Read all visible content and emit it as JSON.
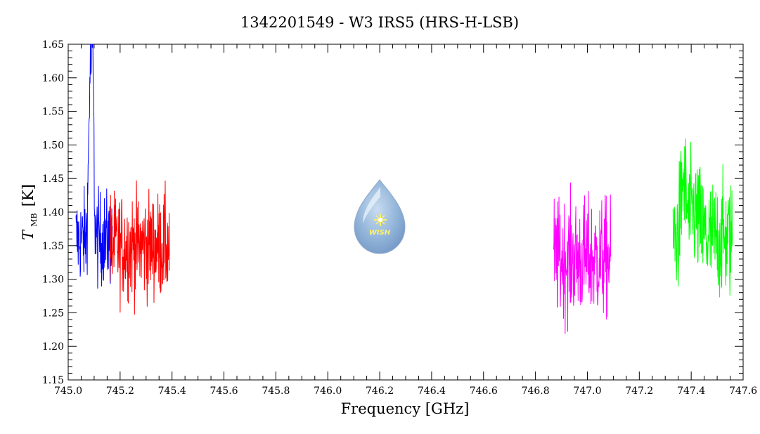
{
  "chart_data": {
    "type": "line",
    "title": "1342201549 - W3 IRS5 (HRS-H-LSB)",
    "xlabel": "Frequency [GHz]",
    "ylabel": {
      "symbol": "T",
      "subscript": "MB",
      "unit": "[K]"
    },
    "xlim": [
      745.0,
      747.6
    ],
    "ylim": [
      1.15,
      1.65
    ],
    "xticks": [
      "745.0",
      "745.2",
      "745.4",
      "745.6",
      "745.8",
      "746.0",
      "746.2",
      "746.4",
      "746.6",
      "746.8",
      "747.0",
      "747.2",
      "747.4",
      "747.6"
    ],
    "yticks": [
      "1.15",
      "1.20",
      "1.25",
      "1.30",
      "1.35",
      "1.40",
      "1.45",
      "1.50",
      "1.55",
      "1.60",
      "1.65"
    ],
    "grid": false,
    "logo_text": "WISH",
    "series": [
      {
        "color": "#0000ff",
        "x_range": [
          745.03,
          745.17
        ],
        "baseline": 1.36,
        "noise": 0.035,
        "features": [
          {
            "center": 745.085,
            "width": 0.006,
            "amplitude": 0.24
          },
          {
            "center": 745.095,
            "width": 0.004,
            "amplitude": 0.22
          }
        ]
      },
      {
        "color": "#ff0000",
        "x_range": [
          745.16,
          745.39
        ],
        "baseline": 1.35,
        "noise": 0.04,
        "features": []
      },
      {
        "color": "#ff00ff",
        "x_range": [
          746.87,
          747.09
        ],
        "baseline": 1.33,
        "noise": 0.045,
        "features": []
      },
      {
        "color": "#00ff00",
        "x_range": [
          747.33,
          747.56
        ],
        "baseline": 1.36,
        "noise": 0.045,
        "features": [
          {
            "center": 747.37,
            "width": 0.01,
            "amplitude": 0.08
          },
          {
            "center": 747.41,
            "width": 0.02,
            "amplitude": 0.04
          }
        ]
      }
    ]
  }
}
